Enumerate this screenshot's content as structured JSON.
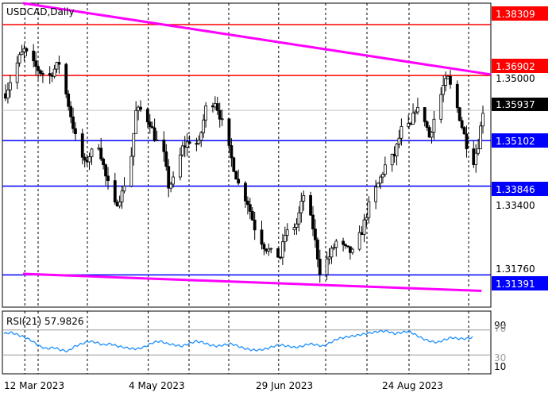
{
  "symbol_label": "USDCAD,Daily",
  "price_axis": {
    "ticks": [
      "1.35000",
      "1.33400",
      "1.31760"
    ],
    "current_price": "1.35937"
  },
  "horizontal_levels": [
    {
      "label": "1.38309",
      "value": 1.38309,
      "color": "#ff0000",
      "kind": "resistance"
    },
    {
      "label": "1.36902",
      "value": 1.36902,
      "color": "#ff0000",
      "kind": "resistance"
    },
    {
      "label": "1.35102",
      "value": 1.35102,
      "color": "#0000ff",
      "kind": "support"
    },
    {
      "label": "1.33846",
      "value": 1.33846,
      "color": "#0000ff",
      "kind": "support"
    },
    {
      "label": "1.31391",
      "value": 1.31391,
      "color": "#0000ff",
      "kind": "support"
    }
  ],
  "trend_channel": {
    "color": "#ff00ff",
    "upper": {
      "start": {
        "date": "1 Mar 2023",
        "price": 1.389
      },
      "end": {
        "date": "22 Sep 2023",
        "price": 1.3693
      }
    },
    "lower": {
      "start": {
        "date": "1 Mar 2023",
        "price": 1.3142
      },
      "end": {
        "date": "18 Sep 2023",
        "price": 1.3095
      }
    }
  },
  "x_axis": {
    "labels": [
      "12 Mar 2023",
      "4 May 2023",
      "29 Jun 2023",
      "24 Aug 2023"
    ]
  },
  "indicator": {
    "label": "RSI(21) 57.9826",
    "levels": [
      "90",
      "70",
      "30",
      "10"
    ],
    "line_color": "#1e90ff"
  },
  "colors": {
    "background": "#ffffff",
    "candle_up": "#ffffff",
    "candle_down": "#000000",
    "candle_border": "#000000",
    "grid": "#000000",
    "level_box_text": "#ffffff"
  },
  "chart_data": {
    "type": "candlestick",
    "title": "USDCAD,Daily",
    "x_range": [
      "1 Mar 2023",
      "22 Sep 2023"
    ],
    "y_range": [
      1.305,
      1.389
    ],
    "price_series": [
      {
        "date": "1 Mar 2023",
        "price": 1.364
      },
      {
        "date": "3 Mar 2023",
        "price": 1.3675
      },
      {
        "date": "7 Mar 2023",
        "price": 1.374
      },
      {
        "date": "9 Mar 2023",
        "price": 1.376
      },
      {
        "date": "13 Mar 2023",
        "price": 1.372
      },
      {
        "date": "16 Mar 2023",
        "price": 1.37
      },
      {
        "date": "20 Mar 2023",
        "price": 1.369
      },
      {
        "date": "24 Mar 2023",
        "price": 1.3725
      },
      {
        "date": "28 Mar 2023",
        "price": 1.361
      },
      {
        "date": "31 Mar 2023",
        "price": 1.352
      },
      {
        "date": "4 Apr 2023",
        "price": 1.3445
      },
      {
        "date": "6 Apr 2023",
        "price": 1.347
      },
      {
        "date": "10 Apr 2023",
        "price": 1.35
      },
      {
        "date": "13 Apr 2023",
        "price": 1.341
      },
      {
        "date": "17 Apr 2023",
        "price": 1.333
      },
      {
        "date": "20 Apr 2023",
        "price": 1.3365
      },
      {
        "date": "24 Apr 2023",
        "price": 1.347
      },
      {
        "date": "26 Apr 2023",
        "price": 1.359
      },
      {
        "date": "28 Apr 2023",
        "price": 1.3595
      },
      {
        "date": "2 May 2023",
        "price": 1.356
      },
      {
        "date": "4 May 2023",
        "price": 1.352
      },
      {
        "date": "8 May 2023",
        "price": 1.347
      },
      {
        "date": "10 May 2023",
        "price": 1.3385
      },
      {
        "date": "12 May 2023",
        "price": 1.34
      },
      {
        "date": "16 May 2023",
        "price": 1.349
      },
      {
        "date": "19 May 2023",
        "price": 1.351
      },
      {
        "date": "23 May 2023",
        "price": 1.35
      },
      {
        "date": "26 May 2023",
        "price": 1.36
      },
      {
        "date": "30 May 2023",
        "price": 1.362
      },
      {
        "date": "2 Jun 2023",
        "price": 1.356
      },
      {
        "date": "6 Jun 2023",
        "price": 1.346
      },
      {
        "date": "9 Jun 2023",
        "price": 1.339
      },
      {
        "date": "13 Jun 2023",
        "price": 1.334
      },
      {
        "date": "16 Jun 2023",
        "price": 1.327
      },
      {
        "date": "20 Jun 2023",
        "price": 1.322
      },
      {
        "date": "23 Jun 2023",
        "price": 1.32
      },
      {
        "date": "27 Jun 2023",
        "price": 1.319
      },
      {
        "date": "29 Jun 2023",
        "price": 1.325
      },
      {
        "date": "4 Jul 2023",
        "price": 1.328
      },
      {
        "date": "7 Jul 2023",
        "price": 1.336
      },
      {
        "date": "11 Jul 2023",
        "price": 1.327
      },
      {
        "date": "14 Jul 2023",
        "price": 1.315
      },
      {
        "date": "18 Jul 2023",
        "price": 1.319
      },
      {
        "date": "21 Jul 2023",
        "price": 1.323
      },
      {
        "date": "25 Jul 2023",
        "price": 1.321
      },
      {
        "date": "28 Jul 2023",
        "price": 1.32
      },
      {
        "date": "1 Aug 2023",
        "price": 1.326
      },
      {
        "date": "4 Aug 2023",
        "price": 1.333
      },
      {
        "date": "8 Aug 2023",
        "price": 1.339
      },
      {
        "date": "11 Aug 2023",
        "price": 1.344
      },
      {
        "date": "15 Aug 2023",
        "price": 1.347
      },
      {
        "date": "18 Aug 2023",
        "price": 1.354
      },
      {
        "date": "22 Aug 2023",
        "price": 1.355
      },
      {
        "date": "24 Aug 2023",
        "price": 1.36
      },
      {
        "date": "28 Aug 2023",
        "price": 1.357
      },
      {
        "date": "30 Aug 2023",
        "price": 1.352
      },
      {
        "date": "1 Sep 2023",
        "price": 1.357
      },
      {
        "date": "5 Sep 2023",
        "price": 1.366
      },
      {
        "date": "7 Sep 2023",
        "price": 1.368
      },
      {
        "date": "11 Sep 2023",
        "price": 1.36
      },
      {
        "date": "13 Sep 2023",
        "price": 1.355
      },
      {
        "date": "15 Sep 2023",
        "price": 1.35
      },
      {
        "date": "18 Sep 2023",
        "price": 1.3455
      },
      {
        "date": "20 Sep 2023",
        "price": 1.35
      },
      {
        "date": "22 Sep 2023",
        "price": 1.3594
      }
    ],
    "rsi_series": [
      64,
      66,
      62,
      58,
      52,
      44,
      40,
      42,
      38,
      36,
      44,
      48,
      52,
      50,
      46,
      48,
      44,
      42,
      40,
      40,
      44,
      50,
      52,
      48,
      46,
      44,
      48,
      52,
      50,
      46,
      44,
      46,
      48,
      44,
      40,
      38,
      38,
      40,
      44,
      46,
      44,
      42,
      44,
      48,
      46,
      44,
      50,
      56,
      58,
      60,
      62,
      64,
      66,
      68,
      68,
      64,
      66,
      68,
      62,
      56,
      52,
      50,
      54,
      58,
      56,
      56,
      58
    ]
  }
}
